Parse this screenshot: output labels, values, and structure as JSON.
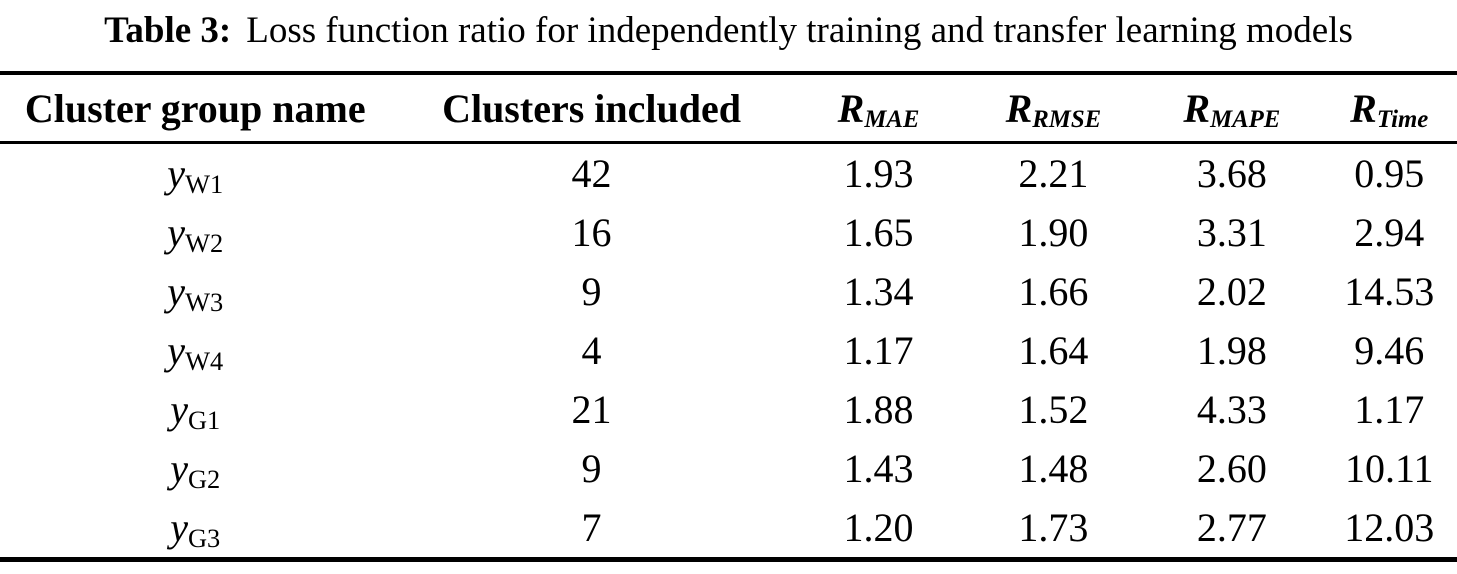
{
  "colors": {
    "text": "#000000",
    "background": "#ffffff",
    "rule": "#000000"
  },
  "table": {
    "caption": {
      "label": "Table 3:",
      "text": "Loss function ratio for independently training and transfer learning models"
    },
    "headers": {
      "cluster_group": "Cluster group name",
      "clusters_included": "Clusters included",
      "r_mae": {
        "base": "R",
        "sub": "MAE"
      },
      "r_rmse": {
        "base": "R",
        "sub": "RMSE"
      },
      "r_mape": {
        "base": "R",
        "sub": "MAPE"
      },
      "r_time": {
        "base": "R",
        "sub": "Time"
      }
    },
    "rows": [
      {
        "group": {
          "base": "y",
          "sub": "W1"
        },
        "clusters_included": "42",
        "r_mae": "1.93",
        "r_rmse": "2.21",
        "r_mape": "3.68",
        "r_time": "0.95"
      },
      {
        "group": {
          "base": "y",
          "sub": "W2"
        },
        "clusters_included": "16",
        "r_mae": "1.65",
        "r_rmse": "1.90",
        "r_mape": "3.31",
        "r_time": "2.94"
      },
      {
        "group": {
          "base": "y",
          "sub": "W3"
        },
        "clusters_included": "9",
        "r_mae": "1.34",
        "r_rmse": "1.66",
        "r_mape": "2.02",
        "r_time": "14.53"
      },
      {
        "group": {
          "base": "y",
          "sub": "W4"
        },
        "clusters_included": "4",
        "r_mae": "1.17",
        "r_rmse": "1.64",
        "r_mape": "1.98",
        "r_time": "9.46"
      },
      {
        "group": {
          "base": "y",
          "sub": "G1"
        },
        "clusters_included": "21",
        "r_mae": "1.88",
        "r_rmse": "1.52",
        "r_mape": "4.33",
        "r_time": "1.17"
      },
      {
        "group": {
          "base": "y",
          "sub": "G2"
        },
        "clusters_included": "9",
        "r_mae": "1.43",
        "r_rmse": "1.48",
        "r_mape": "2.60",
        "r_time": "10.11"
      },
      {
        "group": {
          "base": "y",
          "sub": "G3"
        },
        "clusters_included": "7",
        "r_mae": "1.20",
        "r_rmse": "1.73",
        "r_mape": "2.77",
        "r_time": "12.03"
      }
    ]
  }
}
